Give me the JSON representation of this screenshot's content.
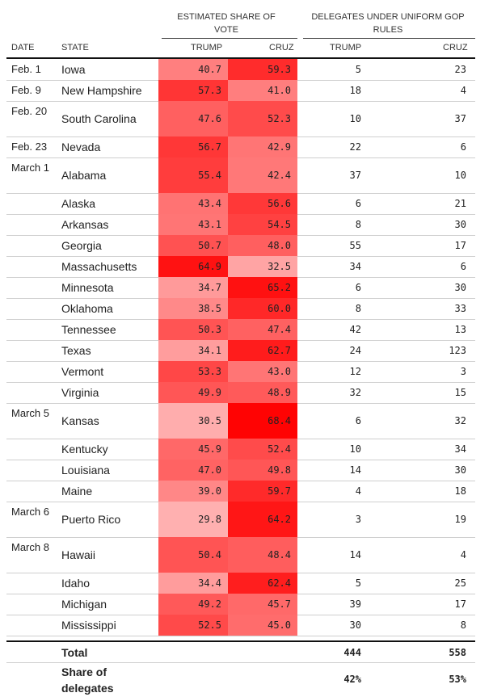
{
  "chart_data": {
    "type": "table",
    "group_headers": {
      "vote_share": "ESTIMATED SHARE OF VOTE",
      "delegates": "DELEGATES UNDER UNIFORM GOP RULES"
    },
    "columns": {
      "date": "DATE",
      "state": "STATE",
      "vote_trump": "TRUMP",
      "vote_cruz": "CRUZ",
      "del_trump": "TRUMP",
      "del_cruz": "CRUZ"
    },
    "rows": [
      {
        "date": "Feb. 1",
        "state": "Iowa",
        "trump": "40.7",
        "cruz": "59.3",
        "del_trump": "5",
        "del_cruz": "23"
      },
      {
        "date": "Feb. 9",
        "state": "New Hampshire",
        "trump": "57.3",
        "cruz": "41.0",
        "del_trump": "18",
        "del_cruz": "4"
      },
      {
        "date": "Feb. 20",
        "state": "South Carolina",
        "trump": "47.6",
        "cruz": "52.3",
        "del_trump": "10",
        "del_cruz": "37"
      },
      {
        "date": "Feb. 23",
        "state": "Nevada",
        "trump": "56.7",
        "cruz": "42.9",
        "del_trump": "22",
        "del_cruz": "6"
      },
      {
        "date": "March 1",
        "state": "Alabama",
        "trump": "55.4",
        "cruz": "42.4",
        "del_trump": "37",
        "del_cruz": "10"
      },
      {
        "date": "",
        "state": "Alaska",
        "trump": "43.4",
        "cruz": "56.6",
        "del_trump": "6",
        "del_cruz": "21"
      },
      {
        "date": "",
        "state": "Arkansas",
        "trump": "43.1",
        "cruz": "54.5",
        "del_trump": "8",
        "del_cruz": "30"
      },
      {
        "date": "",
        "state": "Georgia",
        "trump": "50.7",
        "cruz": "48.0",
        "del_trump": "55",
        "del_cruz": "17"
      },
      {
        "date": "",
        "state": "Massachusetts",
        "trump": "64.9",
        "cruz": "32.5",
        "del_trump": "34",
        "del_cruz": "6"
      },
      {
        "date": "",
        "state": "Minnesota",
        "trump": "34.7",
        "cruz": "65.2",
        "del_trump": "6",
        "del_cruz": "30"
      },
      {
        "date": "",
        "state": "Oklahoma",
        "trump": "38.5",
        "cruz": "60.0",
        "del_trump": "8",
        "del_cruz": "33"
      },
      {
        "date": "",
        "state": "Tennessee",
        "trump": "50.3",
        "cruz": "47.4",
        "del_trump": "42",
        "del_cruz": "13"
      },
      {
        "date": "",
        "state": "Texas",
        "trump": "34.1",
        "cruz": "62.7",
        "del_trump": "24",
        "del_cruz": "123"
      },
      {
        "date": "",
        "state": "Vermont",
        "trump": "53.3",
        "cruz": "43.0",
        "del_trump": "12",
        "del_cruz": "3"
      },
      {
        "date": "",
        "state": "Virginia",
        "trump": "49.9",
        "cruz": "48.9",
        "del_trump": "32",
        "del_cruz": "15"
      },
      {
        "date": "March 5",
        "state": "Kansas",
        "trump": "30.5",
        "cruz": "68.4",
        "del_trump": "6",
        "del_cruz": "32"
      },
      {
        "date": "",
        "state": "Kentucky",
        "trump": "45.9",
        "cruz": "52.4",
        "del_trump": "10",
        "del_cruz": "34"
      },
      {
        "date": "",
        "state": "Louisiana",
        "trump": "47.0",
        "cruz": "49.8",
        "del_trump": "14",
        "del_cruz": "30"
      },
      {
        "date": "",
        "state": "Maine",
        "trump": "39.0",
        "cruz": "59.7",
        "del_trump": "4",
        "del_cruz": "18"
      },
      {
        "date": "March 6",
        "state": "Puerto Rico",
        "trump": "29.8",
        "cruz": "64.2",
        "del_trump": "3",
        "del_cruz": "19"
      },
      {
        "date": "March 8",
        "state": "Hawaii",
        "trump": "50.4",
        "cruz": "48.4",
        "del_trump": "14",
        "del_cruz": "4"
      },
      {
        "date": "",
        "state": "Idaho",
        "trump": "34.4",
        "cruz": "62.4",
        "del_trump": "5",
        "del_cruz": "25"
      },
      {
        "date": "",
        "state": "Michigan",
        "trump": "49.2",
        "cruz": "45.7",
        "del_trump": "39",
        "del_cruz": "17"
      },
      {
        "date": "",
        "state": "Mississippi",
        "trump": "52.5",
        "cruz": "45.0",
        "del_trump": "30",
        "del_cruz": "8"
      }
    ],
    "total": {
      "label": "Total",
      "del_trump": "444",
      "del_cruz": "558"
    },
    "share": {
      "label": "Share of delegates",
      "del_trump": "42%",
      "del_cruz": "53%"
    }
  },
  "colors": {
    "shade_max": "#ff0000",
    "shade_min": "#ffb3b3"
  }
}
